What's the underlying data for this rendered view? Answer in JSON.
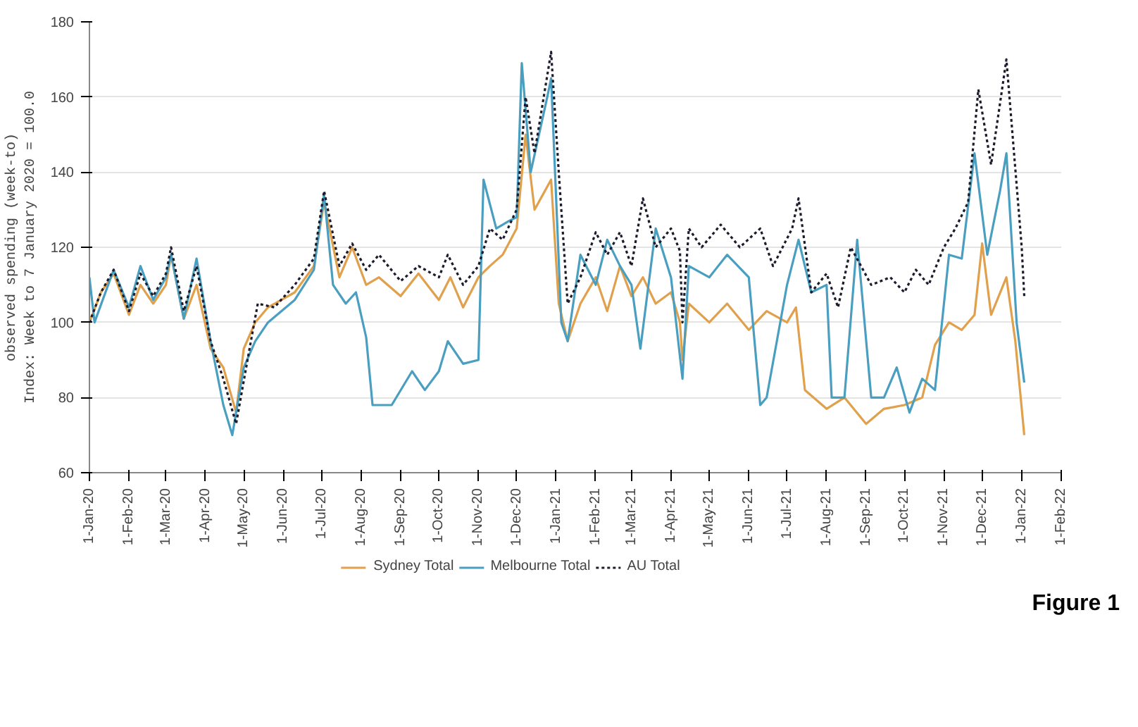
{
  "chart_data": {
    "type": "line",
    "ylabel": "observed spending (week-to)\nIndex: Week to 7 January 2020 = 100.0",
    "annotations": [
      "Figure 1"
    ],
    "xlim": [
      "2020-01-01",
      "2022-02-01"
    ],
    "xticks": [
      {
        "value": "2020-01-01",
        "label": "1-Jan-20"
      },
      {
        "value": "2020-02-01",
        "label": "1-Feb-20"
      },
      {
        "value": "2020-03-01",
        "label": "1-Mar-20"
      },
      {
        "value": "2020-04-01",
        "label": "1-Apr-20"
      },
      {
        "value": "2020-05-01",
        "label": "1-May-20"
      },
      {
        "value": "2020-06-01",
        "label": "1-Jun-20"
      },
      {
        "value": "2020-07-01",
        "label": "1-Jul-20"
      },
      {
        "value": "2020-08-01",
        "label": "1-Aug-20"
      },
      {
        "value": "2020-09-01",
        "label": "1-Sep-20"
      },
      {
        "value": "2020-10-01",
        "label": "1-Oct-20"
      },
      {
        "value": "2020-11-01",
        "label": "1-Nov-20"
      },
      {
        "value": "2020-12-01",
        "label": "1-Dec-20"
      },
      {
        "value": "2021-01-01",
        "label": "1-Jan-21"
      },
      {
        "value": "2021-02-01",
        "label": "1-Feb-21"
      },
      {
        "value": "2021-03-01",
        "label": "1-Mar-21"
      },
      {
        "value": "2021-04-01",
        "label": "1-Apr-21"
      },
      {
        "value": "2021-05-01",
        "label": "1-May-21"
      },
      {
        "value": "2021-06-01",
        "label": "1-Jun-21"
      },
      {
        "value": "2021-07-01",
        "label": "1-Jul-21"
      },
      {
        "value": "2021-08-01",
        "label": "1-Aug-21"
      },
      {
        "value": "2021-09-01",
        "label": "1-Sep-21"
      },
      {
        "value": "2021-10-01",
        "label": "1-Oct-21"
      },
      {
        "value": "2021-11-01",
        "label": "1-Nov-21"
      },
      {
        "value": "2021-12-01",
        "label": "1-Dec-21"
      },
      {
        "value": "2022-01-01",
        "label": "1-Jan-22"
      },
      {
        "value": "2022-02-01",
        "label": "1-Feb-22"
      }
    ],
    "ylim": [
      60,
      180
    ],
    "yticks": [
      60,
      80,
      100,
      120,
      140,
      160,
      180
    ],
    "grid": "y",
    "legend": "bottom",
    "series": [
      {
        "name": "Sydney Total",
        "color": "#e0a04c",
        "line_style": "solid",
        "x": [
          "2020-01-01",
          "2020-01-10",
          "2020-01-20",
          "2020-02-01",
          "2020-02-10",
          "2020-02-20",
          "2020-03-01",
          "2020-03-05",
          "2020-03-15",
          "2020-03-25",
          "2020-04-05",
          "2020-04-15",
          "2020-04-25",
          "2020-05-01",
          "2020-05-10",
          "2020-05-20",
          "2020-06-10",
          "2020-06-25",
          "2020-07-03",
          "2020-07-15",
          "2020-07-25",
          "2020-08-05",
          "2020-08-15",
          "2020-09-01",
          "2020-09-15",
          "2020-10-01",
          "2020-10-10",
          "2020-10-20",
          "2020-11-01",
          "2020-11-10",
          "2020-11-20",
          "2020-12-01",
          "2020-12-08",
          "2020-12-15",
          "2020-12-28",
          "2021-01-03",
          "2021-01-10",
          "2021-01-20",
          "2021-02-01",
          "2021-02-10",
          "2021-02-20",
          "2021-03-01",
          "2021-03-10",
          "2021-03-20",
          "2021-04-01",
          "2021-04-08",
          "2021-04-10",
          "2021-04-15",
          "2021-05-01",
          "2021-05-15",
          "2021-06-01",
          "2021-06-15",
          "2021-07-01",
          "2021-07-08",
          "2021-07-15",
          "2021-08-01",
          "2021-08-15",
          "2021-09-01",
          "2021-09-15",
          "2021-10-01",
          "2021-10-15",
          "2021-10-25",
          "2021-11-05",
          "2021-11-15",
          "2021-11-25",
          "2021-12-01",
          "2021-12-08",
          "2021-12-20",
          "2021-12-27",
          "2022-01-03"
        ],
        "values": [
          100,
          108,
          113,
          102,
          110,
          105,
          110,
          118,
          101,
          110,
          93,
          88,
          76,
          93,
          100,
          104,
          108,
          115,
          132,
          112,
          120,
          110,
          112,
          107,
          113,
          106,
          112,
          104,
          112,
          115,
          118,
          125,
          150,
          130,
          138,
          105,
          95,
          105,
          112,
          103,
          115,
          107,
          112,
          105,
          108,
          100,
          90,
          105,
          100,
          105,
          98,
          103,
          100,
          104,
          82,
          77,
          80,
          73,
          77,
          78,
          80,
          94,
          100,
          98,
          102,
          121,
          102,
          112,
          95,
          70
        ]
      },
      {
        "name": "Melbourne Total",
        "color": "#4a9fc0",
        "line_style": "solid",
        "x": [
          "2020-01-01",
          "2020-01-05",
          "2020-01-20",
          "2020-02-01",
          "2020-02-10",
          "2020-02-20",
          "2020-03-01",
          "2020-03-05",
          "2020-03-15",
          "2020-03-25",
          "2020-04-05",
          "2020-04-15",
          "2020-04-22",
          "2020-05-01",
          "2020-05-10",
          "2020-05-20",
          "2020-06-10",
          "2020-06-25",
          "2020-07-03",
          "2020-07-10",
          "2020-07-20",
          "2020-07-28",
          "2020-08-05",
          "2020-08-10",
          "2020-08-25",
          "2020-09-10",
          "2020-09-20",
          "2020-10-01",
          "2020-10-08",
          "2020-10-20",
          "2020-11-01",
          "2020-11-05",
          "2020-11-15",
          "2020-11-25",
          "2020-12-01",
          "2020-12-05",
          "2020-12-12",
          "2020-12-25",
          "2020-12-28",
          "2021-01-05",
          "2021-01-10",
          "2021-01-20",
          "2021-02-01",
          "2021-02-10",
          "2021-02-20",
          "2021-03-01",
          "2021-03-08",
          "2021-03-20",
          "2021-04-01",
          "2021-04-10",
          "2021-04-15",
          "2021-05-01",
          "2021-05-15",
          "2021-06-01",
          "2021-06-10",
          "2021-06-15",
          "2021-07-01",
          "2021-07-10",
          "2021-07-20",
          "2021-08-01",
          "2021-08-05",
          "2021-08-15",
          "2021-08-25",
          "2021-09-05",
          "2021-09-15",
          "2021-09-25",
          "2021-10-05",
          "2021-10-15",
          "2021-10-25",
          "2021-11-05",
          "2021-11-15",
          "2021-11-25",
          "2021-12-05",
          "2021-12-15",
          "2021-12-20",
          "2021-12-28",
          "2022-01-03"
        ],
        "values": [
          112,
          100,
          114,
          104,
          115,
          106,
          112,
          118,
          101,
          117,
          95,
          78,
          70,
          88,
          95,
          100,
          106,
          114,
          134,
          110,
          105,
          108,
          96,
          78,
          78,
          87,
          82,
          87,
          95,
          89,
          90,
          138,
          125,
          127,
          128,
          169,
          140,
          160,
          165,
          100,
          95,
          118,
          110,
          122,
          115,
          110,
          93,
          125,
          112,
          85,
          115,
          112,
          118,
          112,
          78,
          80,
          110,
          122,
          108,
          110,
          80,
          80,
          122,
          80,
          80,
          88,
          76,
          85,
          82,
          118,
          117,
          145,
          118,
          135,
          145,
          100,
          84
        ]
      },
      {
        "name": "AU Total",
        "color": "#1c1c2c",
        "line_style": "dashed",
        "x": [
          "2020-01-01",
          "2020-01-10",
          "2020-01-20",
          "2020-02-01",
          "2020-02-10",
          "2020-02-20",
          "2020-03-01",
          "2020-03-05",
          "2020-03-15",
          "2020-03-25",
          "2020-04-05",
          "2020-04-15",
          "2020-04-25",
          "2020-05-05",
          "2020-05-12",
          "2020-05-25",
          "2020-06-10",
          "2020-06-25",
          "2020-07-03",
          "2020-07-15",
          "2020-07-25",
          "2020-08-05",
          "2020-08-15",
          "2020-09-01",
          "2020-09-15",
          "2020-10-01",
          "2020-10-08",
          "2020-10-20",
          "2020-11-01",
          "2020-11-10",
          "2020-11-20",
          "2020-12-01",
          "2020-12-08",
          "2020-12-15",
          "2020-12-28",
          "2021-01-03",
          "2021-01-10",
          "2021-01-20",
          "2021-02-01",
          "2021-02-10",
          "2021-02-20",
          "2021-03-01",
          "2021-03-10",
          "2021-03-20",
          "2021-04-01",
          "2021-04-08",
          "2021-04-10",
          "2021-04-15",
          "2021-04-25",
          "2021-05-10",
          "2021-05-25",
          "2021-06-10",
          "2021-06-20",
          "2021-07-05",
          "2021-07-10",
          "2021-07-20",
          "2021-08-01",
          "2021-08-10",
          "2021-08-20",
          "2021-09-05",
          "2021-09-20",
          "2021-10-01",
          "2021-10-10",
          "2021-10-20",
          "2021-11-01",
          "2021-11-10",
          "2021-11-20",
          "2021-11-28",
          "2021-12-08",
          "2021-12-20",
          "2022-01-01",
          "2022-01-03"
        ],
        "values": [
          100,
          108,
          114,
          103,
          113,
          107,
          113,
          120,
          103,
          115,
          95,
          85,
          73,
          92,
          105,
          104,
          110,
          117,
          135,
          115,
          121,
          114,
          118,
          111,
          115,
          112,
          118,
          110,
          115,
          125,
          122,
          130,
          160,
          145,
          172,
          140,
          105,
          112,
          124,
          118,
          124,
          115,
          133,
          120,
          125,
          119,
          100,
          125,
          120,
          126,
          120,
          125,
          115,
          125,
          133,
          108,
          113,
          104,
          120,
          110,
          112,
          108,
          114,
          110,
          120,
          125,
          132,
          162,
          142,
          170,
          120,
          107
        ]
      }
    ]
  }
}
